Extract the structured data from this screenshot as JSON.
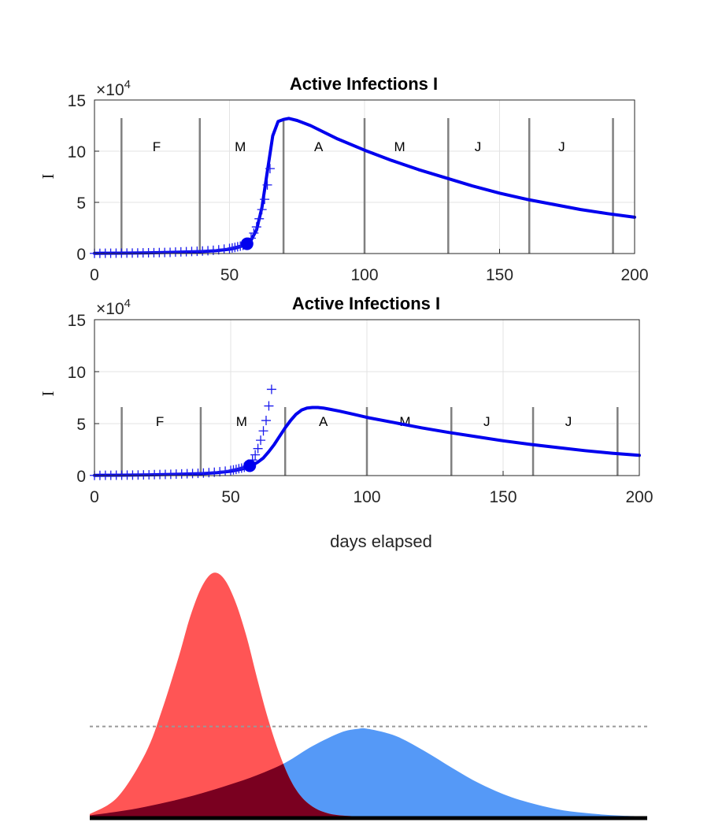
{
  "chart_data": [
    {
      "type": "line",
      "title": "Active Infections  I",
      "ylabel": "I",
      "xlabel": "",
      "y_multiplier": "×10",
      "y_exponent": "4",
      "xlim": [
        0,
        200
      ],
      "ylim": [
        0,
        15
      ],
      "xticks": [
        "0",
        "50",
        "100",
        "150",
        "200"
      ],
      "yticks": [
        "0",
        "5",
        "10",
        "15"
      ],
      "grid": true,
      "month_markers": [
        10,
        39,
        70,
        100,
        131,
        161,
        192
      ],
      "month_labels": [
        {
          "x": 23,
          "label": "F"
        },
        {
          "x": 54,
          "label": "M"
        },
        {
          "x": 83,
          "label": "A"
        },
        {
          "x": 113,
          "label": "M"
        },
        {
          "x": 142,
          "label": "J"
        },
        {
          "x": 173,
          "label": "J"
        }
      ],
      "series": [
        {
          "style": "line",
          "x": [
            0,
            10,
            20,
            30,
            40,
            45,
            50,
            52,
            54,
            56,
            57,
            58,
            60,
            62,
            64,
            66,
            68,
            70,
            72,
            75,
            80,
            90,
            100,
            110,
            120,
            130,
            140,
            150,
            160,
            170,
            180,
            190,
            200
          ],
          "y": [
            0.02,
            0.04,
            0.07,
            0.12,
            0.2,
            0.28,
            0.42,
            0.52,
            0.68,
            0.9,
            1.05,
            1.3,
            2.3,
            4.5,
            8.0,
            11.5,
            12.9,
            13.1,
            13.2,
            13.0,
            12.5,
            11.2,
            10.1,
            9.1,
            8.2,
            7.4,
            6.6,
            5.9,
            5.3,
            4.8,
            4.3,
            3.9,
            3.55
          ]
        },
        {
          "style": "plus",
          "x": [
            0,
            2,
            4,
            6,
            8,
            10,
            12,
            14,
            16,
            18,
            20,
            22,
            24,
            26,
            28,
            30,
            32,
            34,
            36,
            38,
            40,
            42,
            44,
            46,
            48,
            50,
            51,
            52,
            53,
            54,
            55,
            56,
            57,
            58,
            59,
            60,
            61,
            62,
            63,
            64,
            65
          ],
          "y": [
            0.02,
            0.02,
            0.03,
            0.03,
            0.04,
            0.04,
            0.05,
            0.05,
            0.06,
            0.07,
            0.08,
            0.09,
            0.1,
            0.11,
            0.12,
            0.14,
            0.16,
            0.18,
            0.2,
            0.22,
            0.25,
            0.28,
            0.32,
            0.37,
            0.43,
            0.5,
            0.55,
            0.6,
            0.66,
            0.72,
            0.8,
            0.9,
            1.1,
            1.5,
            2.0,
            2.6,
            3.4,
            4.3,
            5.3,
            6.7,
            8.3
          ]
        },
        {
          "style": "marker",
          "x": [
            56.5
          ],
          "y": [
            0.95
          ]
        }
      ]
    },
    {
      "type": "line",
      "title": "Active Infections  I",
      "ylabel": "I",
      "xlabel": "days elapsed",
      "y_multiplier": "×10",
      "y_exponent": "4",
      "xlim": [
        0,
        200
      ],
      "ylim": [
        0,
        15
      ],
      "xticks": [
        "0",
        "50",
        "100",
        "150",
        "200"
      ],
      "yticks": [
        "0",
        "5",
        "10",
        "15"
      ],
      "grid": true,
      "month_markers": [
        10,
        39,
        70,
        100,
        131,
        161,
        192
      ],
      "month_labels": [
        {
          "x": 24,
          "label": "F"
        },
        {
          "x": 54,
          "label": "M"
        },
        {
          "x": 84,
          "label": "A"
        },
        {
          "x": 114,
          "label": "M"
        },
        {
          "x": 144,
          "label": "J"
        },
        {
          "x": 174,
          "label": "J"
        }
      ],
      "series": [
        {
          "style": "line",
          "x": [
            0,
            10,
            20,
            30,
            40,
            45,
            50,
            54,
            56,
            58,
            60,
            62,
            64,
            66,
            68,
            70,
            72,
            74,
            76,
            78,
            80,
            82,
            84,
            86,
            90,
            95,
            100,
            110,
            120,
            130,
            140,
            150,
            160,
            170,
            180,
            190,
            200
          ],
          "y": [
            0.02,
            0.04,
            0.07,
            0.12,
            0.2,
            0.28,
            0.42,
            0.62,
            0.8,
            1.0,
            1.3,
            1.7,
            2.3,
            3.0,
            3.8,
            4.6,
            5.3,
            5.9,
            6.3,
            6.5,
            6.55,
            6.55,
            6.5,
            6.4,
            6.2,
            5.9,
            5.6,
            5.1,
            4.6,
            4.15,
            3.75,
            3.35,
            3.0,
            2.7,
            2.4,
            2.15,
            1.95
          ]
        },
        {
          "style": "plus",
          "x": [
            0,
            2,
            4,
            6,
            8,
            10,
            12,
            14,
            16,
            18,
            20,
            22,
            24,
            26,
            28,
            30,
            32,
            34,
            36,
            38,
            40,
            42,
            44,
            46,
            48,
            50,
            51,
            52,
            53,
            54,
            55,
            56,
            57,
            58,
            59,
            60,
            61,
            62,
            63,
            64,
            65
          ],
          "y": [
            0.02,
            0.02,
            0.03,
            0.03,
            0.04,
            0.04,
            0.05,
            0.05,
            0.06,
            0.07,
            0.08,
            0.09,
            0.1,
            0.11,
            0.12,
            0.14,
            0.16,
            0.18,
            0.2,
            0.22,
            0.25,
            0.28,
            0.32,
            0.37,
            0.43,
            0.5,
            0.55,
            0.6,
            0.66,
            0.72,
            0.8,
            0.9,
            1.1,
            1.5,
            2.0,
            2.6,
            3.4,
            4.3,
            5.3,
            6.7,
            8.3
          ]
        },
        {
          "style": "marker",
          "x": [
            57
          ],
          "y": [
            0.95
          ]
        }
      ]
    },
    {
      "type": "area",
      "title": "",
      "xlabel": "",
      "ylabel": "",
      "xlim": [
        0,
        100
      ],
      "ylim": [
        0,
        100
      ],
      "grid": false,
      "threshold": 37,
      "series": [
        {
          "name": "",
          "color": "#ff5555",
          "x": [
            0,
            5,
            10,
            13,
            16,
            18,
            20,
            22,
            24,
            26,
            28,
            30,
            32,
            34,
            36,
            38,
            40,
            42,
            44,
            46,
            48,
            50,
            55,
            60,
            70,
            80,
            90,
            100
          ],
          "y": [
            1,
            8,
            26,
            44,
            66,
            82,
            94,
            100,
            98,
            89,
            75,
            57,
            40,
            26,
            15,
            8,
            4,
            1.8,
            0.7,
            0.3,
            0.1,
            0,
            0,
            0,
            0,
            0,
            0,
            0
          ]
        },
        {
          "name": "",
          "color": "#5599f7",
          "x": [
            0,
            5,
            10,
            15,
            20,
            25,
            30,
            35,
            40,
            45,
            48,
            50,
            55,
            60,
            65,
            70,
            75,
            80,
            85,
            90,
            95,
            100
          ],
          "y": [
            0.5,
            2,
            4,
            6.5,
            9.5,
            13,
            17,
            22,
            29,
            34.5,
            36,
            36,
            33,
            27,
            20,
            13.5,
            8.5,
            5,
            2.5,
            1.2,
            0.4,
            0
          ]
        }
      ]
    }
  ]
}
